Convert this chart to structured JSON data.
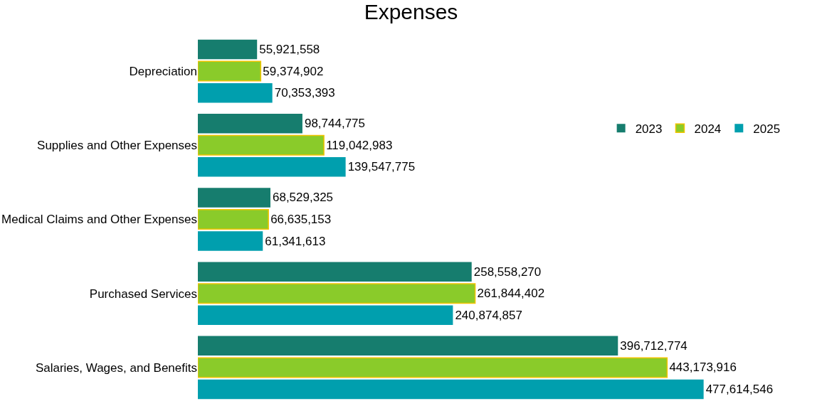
{
  "chart_data": {
    "type": "bar",
    "orientation": "horizontal",
    "title": "Expenses",
    "categories": [
      "Depreciation",
      "Supplies and Other Expenses",
      "Medical Claims and Other Expenses",
      "Purchased Services",
      "Salaries, Wages, and Benefits"
    ],
    "series": [
      {
        "name": "2023",
        "color": "#167d6e",
        "values": [
          55921558,
          98744775,
          68529325,
          258558270,
          396712774
        ],
        "value_labels": [
          "55,921,558",
          "98,744,775",
          "68,529,325",
          "258,558,270",
          "396,712,774"
        ]
      },
      {
        "name": "2024",
        "color": "#8acb2a",
        "values": [
          59374902,
          119042983,
          66635153,
          261844402,
          443173916
        ],
        "value_labels": [
          "59,374,902",
          "119,042,983",
          "66,635,153",
          "261,844,402",
          "443,173,916"
        ]
      },
      {
        "name": "2025",
        "color": "#009fae",
        "values": [
          70353393,
          139547775,
          61341613,
          240874857,
          477614546
        ],
        "value_labels": [
          "70,353,393",
          "139,547,775",
          "61,341,613",
          "240,874,857",
          "477,614,546"
        ]
      }
    ],
    "legend": "top right",
    "tick_labels": "y"
  }
}
